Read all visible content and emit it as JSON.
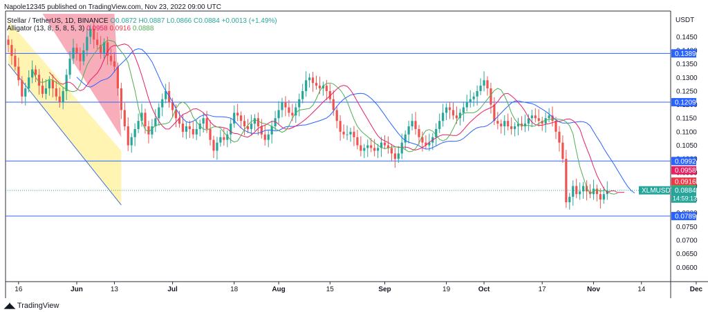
{
  "header": {
    "published": "Napole12345 published on TradingView.com, Nov 23, 2022 09:00 UTC",
    "symbol": "Stellar / TetherUS, 1D, BINANCE",
    "ohlc": "O0.0872 H0.0887 L0.0866 C0.0884 +0.0013 (+1.49%)",
    "alligator_label": "Alligator (13, 8, 5, 8, 5, 3)",
    "alligator_values": [
      "0.0958",
      "0.0916",
      "0.0888"
    ]
  },
  "footer": {
    "brand": "TradingView"
  },
  "chart_data": {
    "type": "candlestick",
    "symbol": "XLMUSDT",
    "y_axis_title": "USDT",
    "ylim": [
      0.056,
      0.1535
    ],
    "y_ticks": [
      0.06,
      0.065,
      0.07,
      0.075,
      0.08,
      0.085,
      0.09,
      0.095,
      0.1,
      0.105,
      0.11,
      0.115,
      0.12,
      0.125,
      0.13,
      0.135,
      0.14,
      0.145
    ],
    "y_tick_labels": [
      "0.0600",
      "0.0650",
      "0.0700",
      "0.0750",
      "0.0800",
      "0.0850",
      "0.0900",
      "0.0950",
      "0.1000",
      "0.1050",
      "0.1100",
      "0.1150",
      "0.1200",
      "0.1250",
      "0.1300",
      "0.1350",
      "0.1400",
      "0.1450"
    ],
    "x_tick_labels": [
      "16",
      "Jun",
      "13",
      "Jul",
      "18",
      "Aug",
      "15",
      "Sep",
      "19",
      "Oct",
      "17",
      "Nov",
      "14",
      "Dec"
    ],
    "horizontal_levels": [
      0.1389,
      0.1209,
      0.0992,
      0.0789
    ],
    "level_labels": [
      "0.1389",
      "0.1209",
      "0.0992",
      "0.0789"
    ],
    "price_labels": [
      {
        "text": "0.0958",
        "color": "#e91e63"
      },
      {
        "text": "0.0916",
        "color": "#f23645"
      },
      {
        "text": "0.0888",
        "color": "#4caf50"
      }
    ],
    "last_price": {
      "symbol": "XLMUSDT",
      "value": "0.0884",
      "countdown": "14:59:13",
      "color": "#26a69a"
    },
    "colors": {
      "up": "#26a69a",
      "down": "#ef5350",
      "jaw": "#2962ff",
      "teeth": "#e91e63",
      "lips": "#4caf50",
      "levels": "#2962ff"
    },
    "closes": [
      0.142,
      0.138,
      0.134,
      0.129,
      0.123,
      0.126,
      0.13,
      0.133,
      0.131,
      0.127,
      0.124,
      0.126,
      0.129,
      0.126,
      0.123,
      0.121,
      0.125,
      0.131,
      0.137,
      0.141,
      0.139,
      0.136,
      0.14,
      0.145,
      0.148,
      0.144,
      0.142,
      0.139,
      0.143,
      0.138,
      0.136,
      0.134,
      0.126,
      0.118,
      0.112,
      0.105,
      0.108,
      0.111,
      0.114,
      0.117,
      0.112,
      0.109,
      0.112,
      0.115,
      0.119,
      0.122,
      0.125,
      0.121,
      0.118,
      0.115,
      0.113,
      0.11,
      0.112,
      0.111,
      0.109,
      0.111,
      0.113,
      0.115,
      0.111,
      0.107,
      0.103,
      0.106,
      0.108,
      0.107,
      0.109,
      0.113,
      0.117,
      0.116,
      0.114,
      0.112,
      0.111,
      0.113,
      0.115,
      0.112,
      0.109,
      0.107,
      0.109,
      0.112,
      0.115,
      0.118,
      0.121,
      0.119,
      0.117,
      0.116,
      0.119,
      0.122,
      0.125,
      0.129,
      0.13,
      0.128,
      0.127,
      0.126,
      0.127,
      0.125,
      0.122,
      0.118,
      0.114,
      0.11,
      0.109,
      0.109,
      0.11,
      0.108,
      0.105,
      0.103,
      0.104,
      0.105,
      0.104,
      0.103,
      0.104,
      0.106,
      0.105,
      0.104,
      0.102,
      0.1,
      0.102,
      0.106,
      0.109,
      0.112,
      0.114,
      0.111,
      0.108,
      0.106,
      0.105,
      0.106,
      0.108,
      0.111,
      0.114,
      0.117,
      0.119,
      0.118,
      0.116,
      0.115,
      0.117,
      0.119,
      0.121,
      0.122,
      0.123,
      0.125,
      0.127,
      0.129,
      0.126,
      0.12,
      0.114,
      0.113,
      0.112,
      0.114,
      0.112,
      0.111,
      0.112,
      0.113,
      0.112,
      0.113,
      0.115,
      0.116,
      0.115,
      0.114,
      0.113,
      0.115,
      0.116,
      0.114,
      0.11,
      0.106,
      0.1,
      0.084,
      0.086,
      0.09,
      0.087,
      0.088,
      0.09,
      0.088,
      0.087,
      0.089,
      0.087,
      0.085,
      0.087,
      0.0884
    ]
  }
}
